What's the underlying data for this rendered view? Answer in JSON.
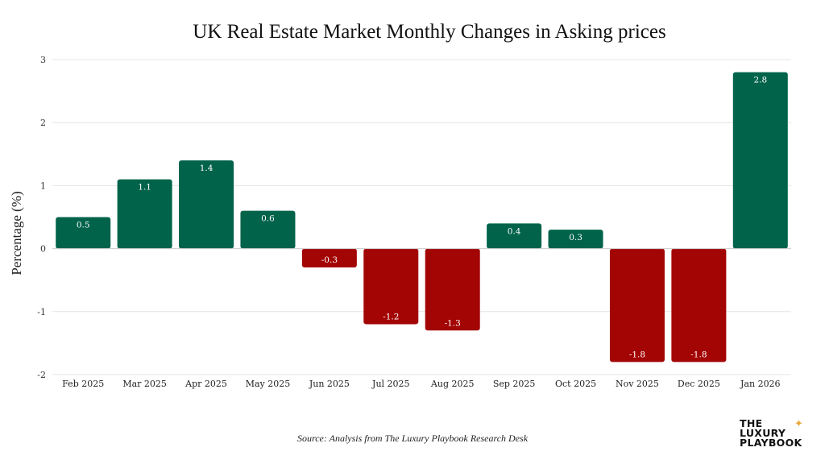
{
  "chart_data": {
    "type": "bar",
    "title": "UK Real Estate Market Monthly Changes in Asking prices",
    "xlabel": "",
    "ylabel": "Percentage (%)",
    "categories": [
      "Feb 2025",
      "Mar 2025",
      "Apr 2025",
      "May 2025",
      "Jun 2025",
      "Jul 2025",
      "Aug 2025",
      "Sep 2025",
      "Oct 2025",
      "Nov 2025",
      "Dec 2025",
      "Jan 2026"
    ],
    "values": [
      0.5,
      1.1,
      1.4,
      0.6,
      -0.3,
      -1.2,
      -1.3,
      0.4,
      0.3,
      -1.8,
      -1.8,
      2.8
    ],
    "data_labels": [
      "0.5",
      "1.1",
      "1.4",
      "0.6",
      "-0.3",
      "-1.2",
      "-1.3",
      "0.4",
      "0.3",
      "-1.8",
      "-1.8",
      "2.8"
    ],
    "ylim": [
      -2,
      3
    ],
    "yticks": [
      "-2",
      "-1",
      "0",
      "1",
      "2",
      "3"
    ],
    "grid": true,
    "colors": {
      "positive": "#00634a",
      "negative": "#a30404"
    }
  },
  "source": "Source: Analysis from The Luxury Playbook Research Desk",
  "logo": {
    "text": "THE LUXURY PLAYBOOK",
    "lines": [
      "THE",
      "LUXURY",
      "PLAYBOOK"
    ]
  }
}
